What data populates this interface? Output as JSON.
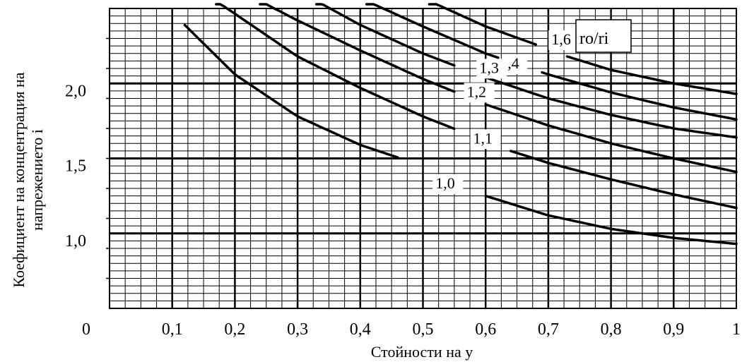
{
  "chart_data": {
    "type": "line",
    "title": "",
    "xlabel": "Стойности на y",
    "ylabel_line1": "Коефициент на концентрация на",
    "ylabel_line2": "напрежението i",
    "xlim": [
      0,
      1
    ],
    "ylim": [
      0.5,
      2.5
    ],
    "x_ticks": [
      {
        "value": 0,
        "label": "0"
      },
      {
        "value": 0.1,
        "label": "0,1"
      },
      {
        "value": 0.2,
        "label": "0,2"
      },
      {
        "value": 0.3,
        "label": "0,3"
      },
      {
        "value": 0.4,
        "label": "0,4"
      },
      {
        "value": 0.5,
        "label": "0,5"
      },
      {
        "value": 0.6,
        "label": "0,6"
      },
      {
        "value": 0.7,
        "label": "0,7"
      },
      {
        "value": 0.8,
        "label": "0,8"
      },
      {
        "value": 0.9,
        "label": "0,9"
      },
      {
        "value": 1.0,
        "label": "1"
      }
    ],
    "y_ticks": [
      {
        "value": 1.0,
        "label": "1,0"
      },
      {
        "value": 1.5,
        "label": "1,5"
      },
      {
        "value": 2.0,
        "label": "2,0"
      }
    ],
    "grid": true,
    "legend_title": "ro/ri",
    "series": [
      {
        "name": "1,0",
        "gap": [
          0.46,
          0.6
        ],
        "x": [
          0.12,
          0.2,
          0.3,
          0.4,
          0.5,
          0.6,
          0.7,
          0.8,
          0.9,
          1.0
        ],
        "y": [
          2.39,
          2.06,
          1.78,
          1.59,
          1.45,
          1.25,
          1.12,
          1.03,
          0.97,
          0.93
        ]
      },
      {
        "name": "1,1",
        "gap": [
          0.55,
          0.64
        ],
        "x": [
          0.17,
          0.3,
          0.4,
          0.5,
          0.64,
          0.7,
          0.8,
          0.9,
          1.0
        ],
        "y": [
          2.55,
          2.18,
          1.97,
          1.78,
          1.55,
          1.47,
          1.36,
          1.26,
          1.17
        ]
      },
      {
        "name": "1,2",
        "gap": [
          0.55,
          0.6
        ],
        "x": [
          0.24,
          0.3,
          0.4,
          0.5,
          0.6,
          0.7,
          0.8,
          0.9,
          1.0
        ],
        "y": [
          2.55,
          2.42,
          2.22,
          2.03,
          1.86,
          1.72,
          1.6,
          1.5,
          1.41
        ]
      },
      {
        "name": "1,3",
        "gap": [
          0.55,
          0.6
        ],
        "x": [
          0.33,
          0.4,
          0.5,
          0.6,
          0.7,
          0.8,
          0.9,
          1.0
        ],
        "y": [
          2.55,
          2.39,
          2.2,
          2.04,
          1.9,
          1.79,
          1.7,
          1.64
        ]
      },
      {
        "name": "1,4",
        "gap": [
          0.62,
          0.69
        ],
        "x": [
          0.41,
          0.5,
          0.6,
          0.7,
          0.8,
          0.9,
          1.0
        ],
        "y": [
          2.55,
          2.38,
          2.2,
          2.06,
          1.94,
          1.84,
          1.76
        ]
      },
      {
        "name": "1,6",
        "gap": [
          0.68,
          0.73
        ],
        "x": [
          0.51,
          0.6,
          0.7,
          0.73,
          0.8,
          0.9,
          1.0
        ],
        "y": [
          2.55,
          2.38,
          2.23,
          2.18,
          2.09,
          2.0,
          1.93
        ]
      }
    ],
    "curve_labels": [
      {
        "text": "1,0",
        "x": 0.52,
        "y": 1.3
      },
      {
        "text": "1,1",
        "x": 0.58,
        "y": 1.6
      },
      {
        "text": "1,2",
        "x": 0.57,
        "y": 1.91
      },
      {
        "text": "1,3",
        "x": 0.59,
        "y": 2.07
      },
      {
        "text": ",4",
        "x": 0.635,
        "y": 2.1
      },
      {
        "text": "1,6",
        "x": 0.705,
        "y": 2.26
      }
    ]
  }
}
